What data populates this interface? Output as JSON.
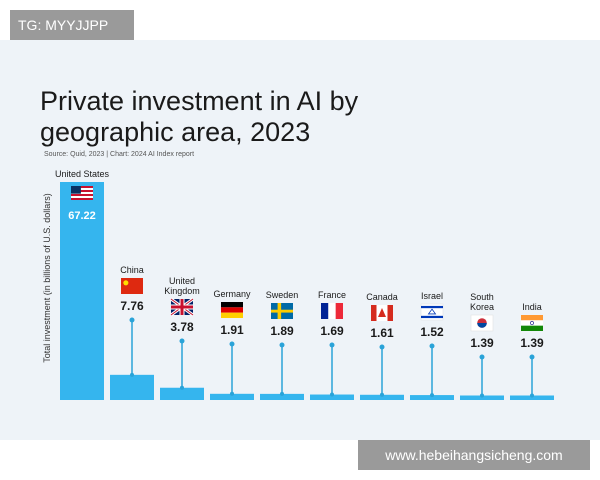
{
  "watermarks": {
    "tag": "TG: MYYJJPP",
    "site": "www.hebeihangsicheng.com"
  },
  "chart_data": {
    "type": "bar",
    "title_line1": "Private investment in AI by",
    "title_line2": "geographic area, 2023",
    "source": "Source: Quid, 2023 | Chart: 2024 AI Index report",
    "ylabel": "Total investment (in billions of U.S. dollars)",
    "categories": [
      {
        "name": [
          "United States"
        ],
        "value": 67.22,
        "flag": "us"
      },
      {
        "name": [
          "China"
        ],
        "value": 7.76,
        "flag": "cn"
      },
      {
        "name": [
          "United",
          "Kingdom"
        ],
        "value": 3.78,
        "flag": "uk"
      },
      {
        "name": [
          "Germany"
        ],
        "value": 1.91,
        "flag": "de"
      },
      {
        "name": [
          "Sweden"
        ],
        "value": 1.89,
        "flag": "se"
      },
      {
        "name": [
          "France"
        ],
        "value": 1.69,
        "flag": "fr"
      },
      {
        "name": [
          "Canada"
        ],
        "value": 1.61,
        "flag": "ca"
      },
      {
        "name": [
          "Israel"
        ],
        "value": 1.52,
        "flag": "il"
      },
      {
        "name": [
          "South",
          "Korea"
        ],
        "value": 1.39,
        "flag": "kr"
      },
      {
        "name": [
          "India"
        ],
        "value": 1.39,
        "flag": "in"
      }
    ],
    "ylim": [
      0,
      67.22
    ],
    "colors": {
      "bar": "#35b5ee",
      "stem": "#2aa3d8",
      "text": "#1a1a1a"
    }
  }
}
